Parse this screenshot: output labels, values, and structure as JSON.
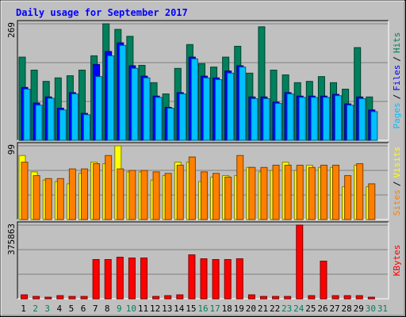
{
  "chart_data": [
    {
      "type": "bar",
      "title": "Daily usage for September 2017",
      "ylim": [
        0,
        269
      ],
      "yticks": [
        269
      ],
      "series": [
        {
          "name": "Hits",
          "color": "#00805c",
          "values": [
            192,
            162,
            136,
            144,
            149,
            162,
            195,
            269,
            256,
            240,
            173,
            133,
            107,
            166,
            221,
            177,
            169,
            192,
            217,
            155,
            262,
            162,
            151,
            133,
            136,
            147,
            133,
            118,
            214,
            100,
            0
          ]
        },
        {
          "name": "Files",
          "color": "#0000ff",
          "values": [
            122,
            86,
            100,
            74,
            110,
            62,
            175,
            205,
            225,
            172,
            148,
            102,
            76,
            110,
            192,
            148,
            144,
            160,
            172,
            100,
            100,
            88,
            110,
            102,
            102,
            102,
            106,
            84,
            100,
            70,
            0
          ]
        },
        {
          "name": "Pages",
          "color": "#00c0ff",
          "values": [
            118,
            81,
            97,
            70,
            107,
            59,
            147,
            195,
            219,
            166,
            144,
            99,
            74,
            107,
            188,
            144,
            140,
            155,
            169,
            96,
            96,
            85,
            107,
            99,
            99,
            99,
            103,
            81,
            96,
            66,
            0
          ]
        }
      ],
      "legend_separator": "/"
    },
    {
      "type": "bar",
      "ylim": [
        0,
        99
      ],
      "yticks": [
        99
      ],
      "series": [
        {
          "name": "Visits",
          "color": "#ffff00",
          "values": [
            86,
            64,
            53,
            51,
            48,
            62,
            77,
            75,
            99,
            64,
            64,
            53,
            59,
            77,
            77,
            51,
            57,
            59,
            59,
            70,
            64,
            66,
            77,
            66,
            73,
            70,
            70,
            44,
            73,
            44,
            0
          ]
        },
        {
          "name": "Sites",
          "color": "#ff8000",
          "values": [
            77,
            59,
            55,
            55,
            68,
            68,
            75,
            86,
            68,
            66,
            66,
            64,
            62,
            73,
            84,
            64,
            62,
            57,
            86,
            70,
            70,
            73,
            73,
            73,
            70,
            73,
            73,
            59,
            75,
            48,
            0
          ]
        }
      ],
      "legend_separator": "/"
    },
    {
      "type": "bar",
      "ylim": [
        0,
        375863
      ],
      "yticks": [
        375863
      ],
      "series": [
        {
          "name": "KBytes",
          "color": "#ff0000",
          "values": [
            20000,
            12000,
            8000,
            16000,
            12000,
            12000,
            200000,
            200000,
            212000,
            208000,
            208000,
            12000,
            16000,
            20000,
            224000,
            204000,
            200000,
            200000,
            204000,
            20000,
            12000,
            12000,
            12000,
            375863,
            16000,
            192000,
            16000,
            16000,
            16000,
            8000,
            0
          ]
        }
      ],
      "categories": [
        "1",
        "2",
        "3",
        "4",
        "5",
        "6",
        "7",
        "8",
        "9",
        "10",
        "11",
        "12",
        "13",
        "14",
        "15",
        "16",
        "17",
        "18",
        "19",
        "20",
        "21",
        "22",
        "23",
        "24",
        "25",
        "26",
        "27",
        "28",
        "29",
        "30",
        "31"
      ],
      "category_colors": [
        "#000000",
        "#00805c",
        "#00805c",
        "#000000",
        "#000000",
        "#000000",
        "#000000",
        "#000000",
        "#00805c",
        "#00805c",
        "#000000",
        "#000000",
        "#000000",
        "#000000",
        "#000000",
        "#00805c",
        "#00805c",
        "#000000",
        "#000000",
        "#000000",
        "#000000",
        "#000000",
        "#00805c",
        "#00805c",
        "#000000",
        "#000000",
        "#000000",
        "#000000",
        "#000000",
        "#00805c",
        "#00805c"
      ]
    }
  ]
}
